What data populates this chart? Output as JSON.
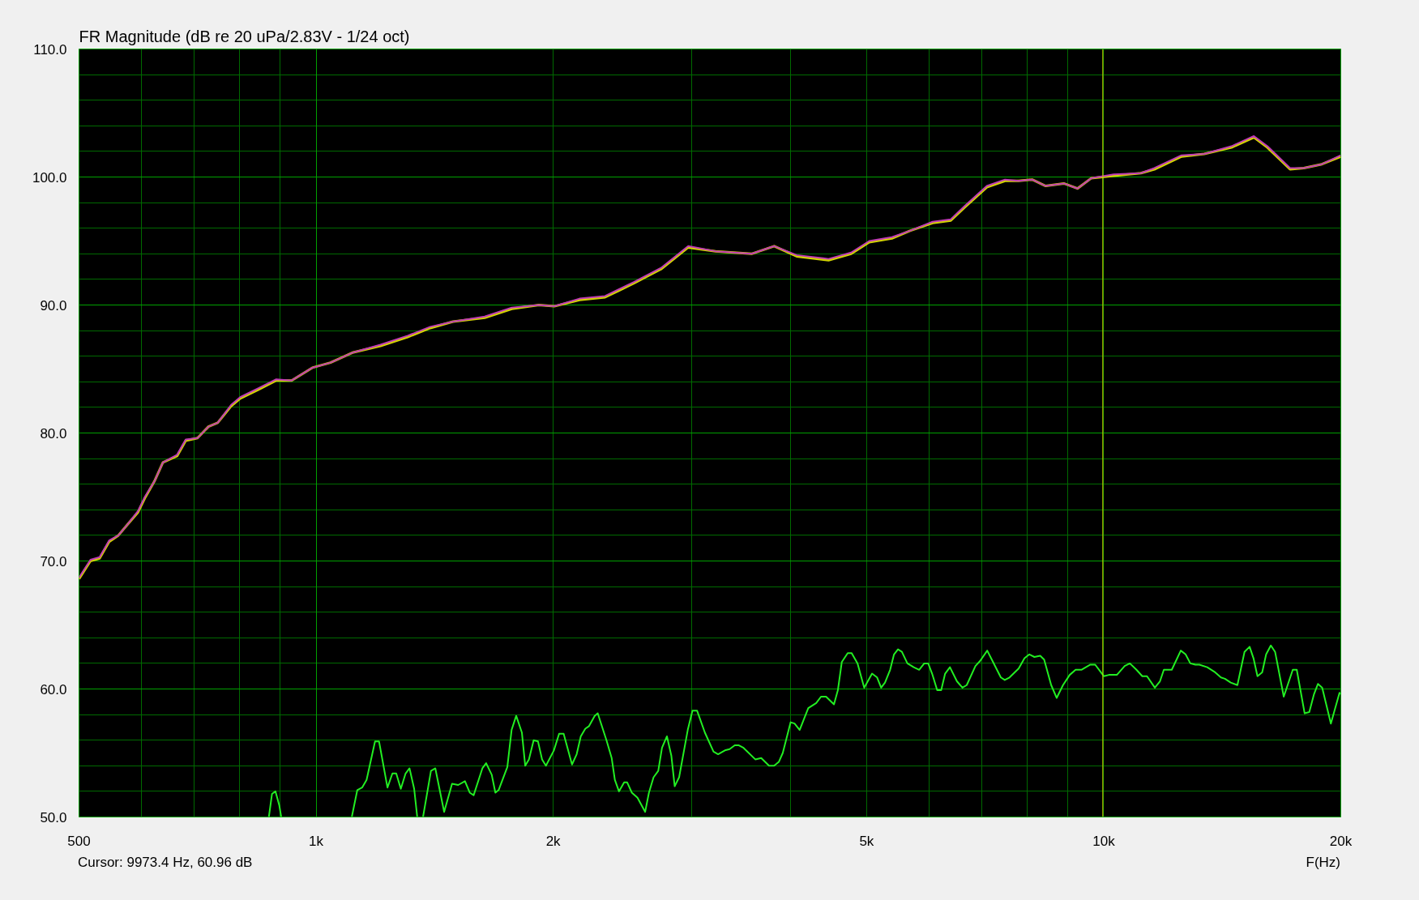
{
  "chart_data": {
    "type": "line",
    "title": "FR Magnitude (dB re 20 uPa/2.83V - 1/24 oct)",
    "xlabel": "F(Hz)",
    "log": "x",
    "grid": true,
    "xlim": [
      500,
      20000
    ],
    "ylim": [
      50,
      110
    ],
    "xticks": [
      500,
      {
        "value": 600,
        "label": null
      },
      {
        "value": 700,
        "label": null
      },
      {
        "value": 800,
        "label": null
      },
      {
        "value": 900,
        "label": null
      },
      {
        "value": 1000,
        "label": "1k"
      },
      {
        "value": 2000,
        "label": "2k"
      },
      {
        "value": 3000,
        "label": null
      },
      {
        "value": 4000,
        "label": null
      },
      {
        "value": 5000,
        "label": "5k"
      },
      {
        "value": 6000,
        "label": null
      },
      {
        "value": 7000,
        "label": null
      },
      {
        "value": 8000,
        "label": null
      },
      {
        "value": 9000,
        "label": null
      },
      {
        "value": 10000,
        "label": "10k"
      },
      {
        "value": 20000,
        "label": "20k"
      }
    ],
    "yticks": [
      {
        "value": 50,
        "label": "50.0"
      },
      {
        "value": 52,
        "label": null
      },
      {
        "value": 54,
        "label": null
      },
      {
        "value": 56,
        "label": null
      },
      {
        "value": 58,
        "label": null
      },
      {
        "value": 60,
        "label": "60.0"
      },
      {
        "value": 62,
        "label": null
      },
      {
        "value": 64,
        "label": null
      },
      {
        "value": 66,
        "label": null
      },
      {
        "value": 68,
        "label": null
      },
      {
        "value": 70,
        "label": "70.0"
      },
      {
        "value": 72,
        "label": null
      },
      {
        "value": 74,
        "label": null
      },
      {
        "value": 76,
        "label": null
      },
      {
        "value": 78,
        "label": null
      },
      {
        "value": 80,
        "label": "80.0"
      },
      {
        "value": 82,
        "label": null
      },
      {
        "value": 84,
        "label": null
      },
      {
        "value": 86,
        "label": null
      },
      {
        "value": 88,
        "label": null
      },
      {
        "value": 90,
        "label": "90.0"
      },
      {
        "value": 92,
        "label": null
      },
      {
        "value": 94,
        "label": null
      },
      {
        "value": 96,
        "label": null
      },
      {
        "value": 98,
        "label": null
      },
      {
        "value": 100,
        "label": "100.0"
      },
      {
        "value": 102,
        "label": null
      },
      {
        "value": 104,
        "label": null
      },
      {
        "value": 106,
        "label": null
      },
      {
        "value": 108,
        "label": null
      },
      {
        "value": 110,
        "label": "110.0"
      }
    ],
    "ref_lines": [
      {
        "axis": "x",
        "value": 9973.4,
        "color": "#d2d200"
      }
    ],
    "annotations": [
      "Cursor: 9973.4 Hz, 60.96 dB"
    ],
    "series": [
      {
        "color": "#d2d200",
        "x": [
          500,
          517,
          531,
          546,
          561,
          577,
          594,
          606,
          623,
          639,
          666,
          683,
          707,
          730,
          750,
          780,
          801,
          845,
          890,
          931,
          989,
          1043,
          1115,
          1207,
          1307,
          1396,
          1492,
          1637,
          1772,
          1918,
          2006,
          2160,
          2327,
          2532,
          2741,
          2968,
          3214,
          3572,
          3816,
          4076,
          4473,
          4779,
          5038,
          5383,
          5676,
          6063,
          6395,
          6652,
          7106,
          7494,
          7800,
          8113,
          8440,
          8899,
          9261,
          9638,
          10293,
          11146,
          11596,
          12556,
          13414,
          14524,
          15513,
          16141,
          17244,
          17947,
          18922,
          20000
        ],
        "values": [
          68.6,
          70.0,
          70.2,
          71.5,
          72.0,
          72.9,
          73.8,
          74.9,
          76.2,
          77.7,
          78.2,
          79.4,
          79.6,
          80.5,
          80.8,
          82.1,
          82.7,
          83.4,
          84.1,
          84.1,
          85.1,
          85.5,
          86.3,
          86.8,
          87.5,
          88.2,
          88.7,
          89.0,
          89.7,
          90.0,
          89.9,
          90.4,
          90.6,
          91.7,
          92.8,
          94.5,
          94.2,
          94.0,
          94.6,
          93.8,
          93.5,
          94.0,
          94.9,
          95.2,
          95.8,
          96.4,
          96.6,
          97.6,
          99.2,
          99.7,
          99.7,
          99.8,
          99.3,
          99.5,
          99.1,
          99.9,
          100.1,
          100.3,
          100.6,
          101.6,
          101.8,
          102.3,
          103.1,
          102.3,
          100.6,
          100.7,
          101.0,
          101.6
        ]
      },
      {
        "color": "#c03cb4",
        "x": [
          500,
          517,
          531,
          546,
          561,
          577,
          594,
          606,
          623,
          639,
          666,
          683,
          707,
          730,
          750,
          780,
          801,
          845,
          890,
          931,
          989,
          1043,
          1115,
          1207,
          1307,
          1396,
          1492,
          1637,
          1772,
          1918,
          2006,
          2160,
          2327,
          2532,
          2741,
          2968,
          3214,
          3572,
          3816,
          4076,
          4473,
          4779,
          5038,
          5383,
          5676,
          6063,
          6395,
          6652,
          7106,
          7494,
          7800,
          8113,
          8440,
          8899,
          9261,
          9638,
          10293,
          11146,
          11596,
          12556,
          13414,
          14524,
          15513,
          16141,
          17244,
          17947,
          18922,
          20000
        ],
        "values": [
          68.7,
          70.1,
          70.3,
          71.6,
          72.0,
          72.9,
          73.9,
          75.0,
          76.2,
          77.7,
          78.3,
          79.5,
          79.6,
          80.5,
          80.8,
          82.2,
          82.8,
          83.5,
          84.2,
          84.1,
          85.1,
          85.5,
          86.3,
          86.9,
          87.6,
          88.3,
          88.7,
          89.1,
          89.8,
          90.0,
          89.9,
          90.5,
          90.7,
          91.8,
          92.9,
          94.6,
          94.2,
          94.0,
          94.6,
          93.9,
          93.6,
          94.1,
          95.0,
          95.3,
          95.8,
          96.5,
          96.7,
          97.7,
          99.3,
          99.8,
          99.7,
          99.8,
          99.3,
          99.5,
          99.1,
          99.9,
          100.2,
          100.3,
          100.7,
          101.7,
          101.8,
          102.4,
          103.2,
          102.4,
          100.7,
          100.7,
          101.0,
          101.7
        ]
      },
      {
        "color": "#22ee22",
        "x": [
          871,
          879,
          888,
          898,
          903,
          1000,
          1110,
          1128,
          1144,
          1159,
          1188,
          1202,
          1232,
          1250,
          1264,
          1281,
          1299,
          1314,
          1332,
          1344,
          1355,
          1367,
          1399,
          1417,
          1454,
          1488,
          1515,
          1545,
          1567,
          1585,
          1626,
          1644,
          1671,
          1689,
          1705,
          1749,
          1771,
          1795,
          1825,
          1843,
          1863,
          1889,
          1913,
          1936,
          1958,
          2004,
          2035,
          2062,
          2113,
          2142,
          2168,
          2197,
          2221,
          2258,
          2278,
          2337,
          2373,
          2395,
          2424,
          2461,
          2483,
          2517,
          2559,
          2617,
          2646,
          2682,
          2719,
          2749,
          2789,
          2825,
          2853,
          2890,
          2964,
          3005,
          3046,
          3116,
          3196,
          3239,
          3304,
          3350,
          3401,
          3442,
          3489,
          3611,
          3674,
          3759,
          3815,
          3868,
          3913,
          4004,
          4050,
          4111,
          4216,
          4315,
          4376,
          4441,
          4545,
          4597,
          4650,
          4731,
          4786,
          4869,
          4965,
          5080,
          5156,
          5217,
          5276,
          5356,
          5417,
          5480,
          5543,
          5633,
          5738,
          5830,
          5918,
          5986,
          6055,
          6146,
          6218,
          6290,
          6379,
          6511,
          6616,
          6700,
          6873,
          6969,
          7114,
          7236,
          7403,
          7488,
          7593,
          7799,
          7933,
          8046,
          8166,
          8306,
          8402,
          8577,
          8716,
          8878,
          9054,
          9212,
          9368,
          9618,
          9754,
          10003,
          10154,
          10392,
          10633,
          10794,
          11004,
          11195,
          11349,
          11613,
          11788,
          11923,
          12202,
          12528,
          12705,
          12882,
          13073,
          13227,
          13533,
          13851,
          14088,
          14252,
          14497,
          14783,
          15093,
          15320,
          15495,
          15676,
          15893,
          16078,
          16301,
          16505,
          16928,
          17381,
          17584,
          17993,
          18240,
          18495,
          18709,
          18942,
          19428,
          19655,
          19925,
          20000
        ],
        "values": [
          50.0,
          51.8,
          52.0,
          50.9,
          50.0,
          null,
          50.0,
          52.1,
          52.3,
          52.9,
          55.9,
          55.9,
          52.3,
          53.4,
          53.4,
          52.2,
          53.4,
          53.8,
          52.2,
          50.0,
          null,
          50.0,
          53.6,
          53.8,
          50.4,
          52.6,
          52.5,
          52.8,
          51.9,
          51.7,
          53.8,
          54.2,
          53.3,
          51.9,
          52.1,
          53.9,
          56.8,
          57.9,
          56.6,
          54.0,
          54.5,
          56.0,
          55.9,
          54.5,
          54.0,
          55.2,
          56.5,
          56.5,
          54.1,
          54.9,
          56.3,
          56.9,
          57.1,
          57.9,
          58.1,
          56.0,
          54.6,
          52.9,
          52.0,
          52.7,
          52.7,
          51.9,
          51.5,
          50.4,
          51.9,
          53.1,
          53.6,
          55.4,
          56.3,
          54.8,
          52.4,
          53.1,
          56.8,
          58.3,
          58.3,
          56.6,
          55.1,
          54.9,
          55.2,
          55.3,
          55.6,
          55.6,
          55.4,
          54.5,
          54.6,
          54.0,
          54.0,
          54.3,
          55.0,
          57.4,
          57.3,
          56.8,
          58.5,
          58.9,
          59.4,
          59.4,
          58.8,
          59.9,
          62.1,
          62.8,
          62.8,
          62.0,
          60.1,
          61.2,
          60.9,
          60.1,
          60.5,
          61.5,
          62.7,
          63.1,
          62.9,
          62.0,
          61.7,
          61.5,
          62.0,
          62.0,
          61.2,
          59.9,
          59.9,
          61.2,
          61.7,
          60.6,
          60.1,
          60.3,
          61.8,
          62.2,
          63.0,
          62.1,
          60.9,
          60.7,
          60.9,
          61.6,
          62.4,
          62.7,
          62.5,
          62.6,
          62.3,
          60.3,
          59.3,
          60.3,
          61.1,
          61.5,
          61.5,
          61.9,
          61.9,
          61.0,
          61.1,
          61.1,
          61.8,
          62.0,
          61.5,
          61.0,
          61.0,
          60.1,
          60.6,
          61.5,
          61.5,
          63.0,
          62.7,
          62.0,
          61.9,
          61.9,
          61.7,
          61.3,
          60.9,
          60.8,
          60.5,
          60.3,
          62.9,
          63.3,
          62.4,
          61.0,
          61.3,
          62.7,
          63.4,
          62.9,
          59.4,
          61.5,
          61.5,
          58.1,
          58.2,
          59.6,
          60.4,
          60.1,
          57.3,
          58.4,
          59.7,
          59.6
        ]
      }
    ]
  }
}
